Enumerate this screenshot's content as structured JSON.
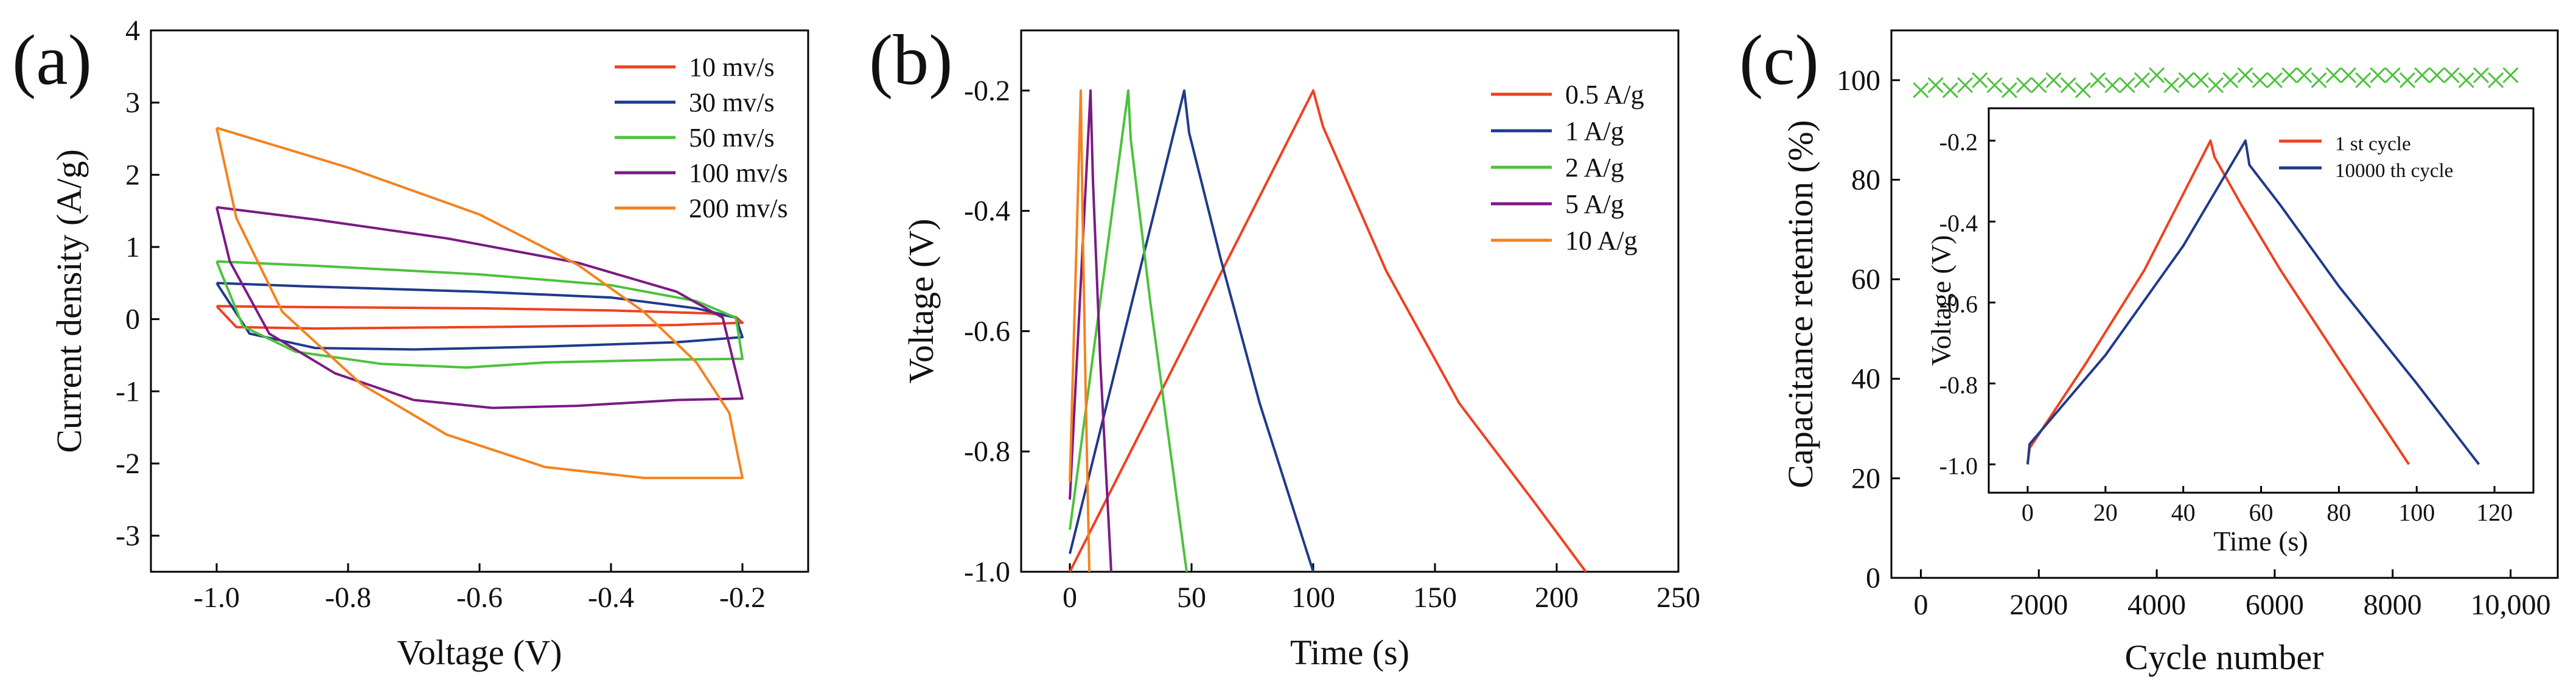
{
  "chart_data": [
    {
      "panel": "(a)",
      "type": "line",
      "xlabel": "Voltage (V)",
      "ylabel": "Current density (A/g)",
      "xlim": [
        -1.1,
        -0.1
      ],
      "ylim": [
        -3.5,
        4.0
      ],
      "xticks": [
        -1.0,
        -0.8,
        -0.6,
        -0.4,
        -0.2
      ],
      "xtick_labels": [
        "-1.0",
        "-0.8",
        "-0.6",
        "-0.4",
        "-0.2"
      ],
      "yticks": [
        -3,
        -2,
        -1,
        0,
        1,
        2,
        3,
        4
      ],
      "ytick_labels": [
        "-3",
        "-2",
        "-1",
        "0",
        "1",
        "2",
        "3",
        "4"
      ],
      "legend_position": "top-right",
      "series": [
        {
          "name": "10 mv/s",
          "color": "#f0401e",
          "upper": [
            [
              -1.0,
              0.18
            ],
            [
              -0.9,
              0.17
            ],
            [
              -0.6,
              0.15
            ],
            [
              -0.4,
              0.12
            ],
            [
              -0.25,
              0.08
            ],
            [
              -0.21,
              0.03
            ],
            [
              -0.2,
              -0.05
            ]
          ],
          "lower": [
            [
              -0.2,
              -0.05
            ],
            [
              -0.3,
              -0.08
            ],
            [
              -0.6,
              -0.11
            ],
            [
              -0.85,
              -0.13
            ],
            [
              -0.97,
              -0.11
            ],
            [
              -1.0,
              0.18
            ]
          ]
        },
        {
          "name": "30 mv/s",
          "color": "#1f3a8c",
          "upper": [
            [
              -1.0,
              0.5
            ],
            [
              -0.85,
              0.45
            ],
            [
              -0.6,
              0.38
            ],
            [
              -0.4,
              0.3
            ],
            [
              -0.27,
              0.15
            ],
            [
              -0.21,
              0.02
            ],
            [
              -0.2,
              -0.25
            ]
          ],
          "lower": [
            [
              -0.2,
              -0.25
            ],
            [
              -0.3,
              -0.32
            ],
            [
              -0.5,
              -0.38
            ],
            [
              -0.7,
              -0.42
            ],
            [
              -0.85,
              -0.4
            ],
            [
              -0.95,
              -0.2
            ],
            [
              -1.0,
              0.5
            ]
          ]
        },
        {
          "name": "50 mv/s",
          "color": "#4cc23c",
          "upper": [
            [
              -1.0,
              0.8
            ],
            [
              -0.85,
              0.74
            ],
            [
              -0.6,
              0.62
            ],
            [
              -0.4,
              0.47
            ],
            [
              -0.27,
              0.25
            ],
            [
              -0.21,
              0.02
            ],
            [
              -0.2,
              -0.55
            ]
          ],
          "lower": [
            [
              -0.2,
              -0.55
            ],
            [
              -0.3,
              -0.56
            ],
            [
              -0.5,
              -0.6
            ],
            [
              -0.62,
              -0.67
            ],
            [
              -0.75,
              -0.62
            ],
            [
              -0.88,
              -0.45
            ],
            [
              -0.96,
              -0.1
            ],
            [
              -1.0,
              0.8
            ]
          ]
        },
        {
          "name": "100 mv/s",
          "color": "#7b1a84",
          "upper": [
            [
              -1.0,
              1.55
            ],
            [
              -0.85,
              1.38
            ],
            [
              -0.65,
              1.12
            ],
            [
              -0.45,
              0.78
            ],
            [
              -0.3,
              0.38
            ],
            [
              -0.23,
              0.02
            ],
            [
              -0.2,
              -1.1
            ]
          ],
          "lower": [
            [
              -0.2,
              -1.1
            ],
            [
              -0.3,
              -1.12
            ],
            [
              -0.45,
              -1.2
            ],
            [
              -0.58,
              -1.23
            ],
            [
              -0.7,
              -1.12
            ],
            [
              -0.82,
              -0.75
            ],
            [
              -0.92,
              -0.2
            ],
            [
              -0.98,
              0.8
            ],
            [
              -1.0,
              1.55
            ]
          ]
        },
        {
          "name": "200 mv/s",
          "color": "#f5821f",
          "upper": [
            [
              -1.0,
              2.65
            ],
            [
              -0.8,
              2.1
            ],
            [
              -0.6,
              1.45
            ],
            [
              -0.45,
              0.75
            ],
            [
              -0.35,
              0.1
            ],
            [
              -0.27,
              -0.6
            ],
            [
              -0.22,
              -1.3
            ],
            [
              -0.2,
              -2.2
            ]
          ],
          "lower": [
            [
              -0.2,
              -2.2
            ],
            [
              -0.35,
              -2.2
            ],
            [
              -0.5,
              -2.05
            ],
            [
              -0.65,
              -1.6
            ],
            [
              -0.78,
              -0.9
            ],
            [
              -0.9,
              0.1
            ],
            [
              -0.97,
              1.4
            ],
            [
              -1.0,
              2.65
            ]
          ]
        }
      ]
    },
    {
      "panel": "(b)",
      "type": "line",
      "xlabel": "Time (s)",
      "ylabel": "Voltage (V)",
      "xlim": [
        -20,
        250
      ],
      "ylim": [
        -1.0,
        -0.1
      ],
      "xticks": [
        0,
        50,
        100,
        150,
        200,
        250
      ],
      "xtick_labels": [
        "0",
        "50",
        "100",
        "150",
        "200",
        "250"
      ],
      "yticks": [
        -1.0,
        -0.8,
        -0.6,
        -0.4,
        -0.2
      ],
      "ytick_labels": [
        "-1.0",
        "-0.8",
        "-0.6",
        "-0.4",
        "-0.2"
      ],
      "legend_position": "top-right",
      "series": [
        {
          "name": "0.5 A/g",
          "color": "#f0401e",
          "points": [
            [
              0,
              -1.0
            ],
            [
              100,
              -0.2
            ],
            [
              104,
              -0.26
            ],
            [
              130,
              -0.5
            ],
            [
              160,
              -0.72
            ],
            [
              190,
              -0.88
            ],
            [
              212,
              -1.0
            ]
          ]
        },
        {
          "name": "1 A/g",
          "color": "#1f3a8c",
          "points": [
            [
              0,
              -0.97
            ],
            [
              47,
              -0.2
            ],
            [
              49,
              -0.27
            ],
            [
              62,
              -0.48
            ],
            [
              78,
              -0.72
            ],
            [
              100,
              -1.0
            ]
          ]
        },
        {
          "name": "2 A/g",
          "color": "#4cc23c",
          "points": [
            [
              0,
              -0.93
            ],
            [
              24,
              -0.2
            ],
            [
              25,
              -0.28
            ],
            [
              33,
              -0.55
            ],
            [
              40,
              -0.76
            ],
            [
              48,
              -1.0
            ]
          ]
        },
        {
          "name": "5 A/g",
          "color": "#7b1a84",
          "points": [
            [
              0,
              -0.88
            ],
            [
              8.5,
              -0.2
            ],
            [
              9.5,
              -0.35
            ],
            [
              12.5,
              -0.65
            ],
            [
              17,
              -1.0
            ]
          ]
        },
        {
          "name": "10 A/g",
          "color": "#f5821f",
          "points": [
            [
              0,
              -0.85
            ],
            [
              4.5,
              -0.2
            ],
            [
              5.2,
              -0.4
            ],
            [
              6.5,
              -0.7
            ],
            [
              8,
              -1.0
            ]
          ]
        }
      ]
    },
    {
      "panel": "(c)",
      "type": "scatter",
      "xlabel": "Cycle number",
      "ylabel": "Capacitance retention (%)",
      "xlim": [
        -500,
        10800
      ],
      "ylim": [
        0,
        110
      ],
      "xticks": [
        0,
        2000,
        4000,
        6000,
        8000,
        10000
      ],
      "xtick_labels": [
        "0",
        "2000",
        "4000",
        "6000",
        "8000",
        "10,000"
      ],
      "yticks": [
        0,
        20,
        40,
        60,
        80,
        100
      ],
      "ytick_labels": [
        "0",
        "20",
        "40",
        "60",
        "80",
        "100"
      ],
      "series": [
        {
          "name": "retention",
          "color": "#4cc23c",
          "marker": "x",
          "x_start": 0,
          "x_end": 10000,
          "x_step": 250,
          "y": [
            98,
            99,
            98,
            99,
            100,
            99,
            98,
            99,
            99,
            100,
            99,
            98,
            100,
            99,
            99,
            100,
            101,
            99,
            100,
            100,
            99,
            100,
            101,
            100,
            100,
            101,
            101,
            100,
            101,
            101,
            100,
            101,
            101,
            100,
            101,
            101,
            101,
            100,
            101,
            100,
            101
          ]
        }
      ],
      "inset": {
        "xlabel": "Time (s)",
        "ylabel": "Voltage (V)",
        "xlim": [
          -10,
          130
        ],
        "ylim": [
          -1.07,
          -0.12
        ],
        "xticks": [
          0,
          20,
          40,
          60,
          80,
          100,
          120
        ],
        "xtick_labels": [
          "0",
          "20",
          "40",
          "60",
          "80",
          "100",
          "120"
        ],
        "yticks": [
          -1.0,
          -0.8,
          -0.6,
          -0.4,
          -0.2
        ],
        "ytick_labels": [
          "-1.0",
          "-0.8",
          "-0.6",
          "-0.4",
          "-0.2"
        ],
        "legend_position": "top-right",
        "series": [
          {
            "name": "1 st cycle",
            "color": "#f0401e",
            "points": [
              [
                0,
                -1.0
              ],
              [
                0.5,
                -0.96
              ],
              [
                15,
                -0.75
              ],
              [
                30,
                -0.52
              ],
              [
                47,
                -0.2
              ],
              [
                48,
                -0.24
              ],
              [
                55,
                -0.36
              ],
              [
                65,
                -0.52
              ],
              [
                80,
                -0.74
              ],
              [
                98,
                -1.0
              ]
            ]
          },
          {
            "name": "10000 th cycle",
            "color": "#1f3a8c",
            "points": [
              [
                0,
                -1.0
              ],
              [
                0.5,
                -0.95
              ],
              [
                20,
                -0.73
              ],
              [
                40,
                -0.46
              ],
              [
                56,
                -0.2
              ],
              [
                57,
                -0.26
              ],
              [
                65,
                -0.36
              ],
              [
                80,
                -0.56
              ],
              [
                100,
                -0.8
              ],
              [
                116,
                -1.0
              ]
            ]
          }
        ]
      }
    }
  ]
}
